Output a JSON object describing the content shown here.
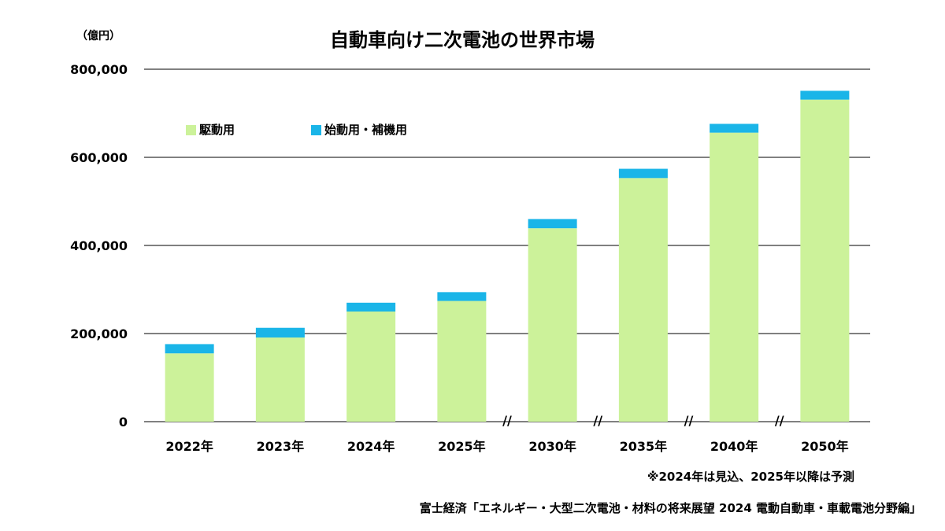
{
  "unit_label": "（億円）",
  "note": "※2024年は見込、2025年以降は予測",
  "source": "富士経済「エネルギー・大型二次電池・材料の将来展望 2024 電動自動車・車載電池分野編」",
  "colors": {
    "drive": "#ccf29a",
    "starter": "#1ab5e8",
    "grid": "#000000",
    "text": "#000000"
  },
  "chart_data": {
    "type": "bar",
    "stacked": true,
    "title": "自動車向け二次電池の世界市場",
    "ylabel": "",
    "xlabel": "",
    "categories": [
      "2022年",
      "2023年",
      "2024年",
      "2025年",
      "2030年",
      "2035年",
      "2040年",
      "2050年"
    ],
    "series": [
      {
        "name": "駆動用",
        "color": "#ccf29a",
        "values": [
          155000,
          191000,
          250000,
          274000,
          439000,
          553000,
          656000,
          731000
        ]
      },
      {
        "name": "始動用・補機用",
        "color": "#1ab5e8",
        "values": [
          21000,
          22000,
          20000,
          20000,
          21000,
          21000,
          20000,
          20000
        ]
      }
    ],
    "ylim": [
      0,
      800000
    ],
    "yticks": [
      0,
      200000,
      400000,
      600000,
      800000
    ],
    "ytick_labels": [
      "0",
      "200,000",
      "400,000",
      "600,000",
      "800,000"
    ],
    "axis_breaks_after": [
      "2025年",
      "2030年",
      "2035年",
      "2040年"
    ],
    "axis_break_label": "//",
    "grid": true,
    "legend_position": "top-left"
  }
}
